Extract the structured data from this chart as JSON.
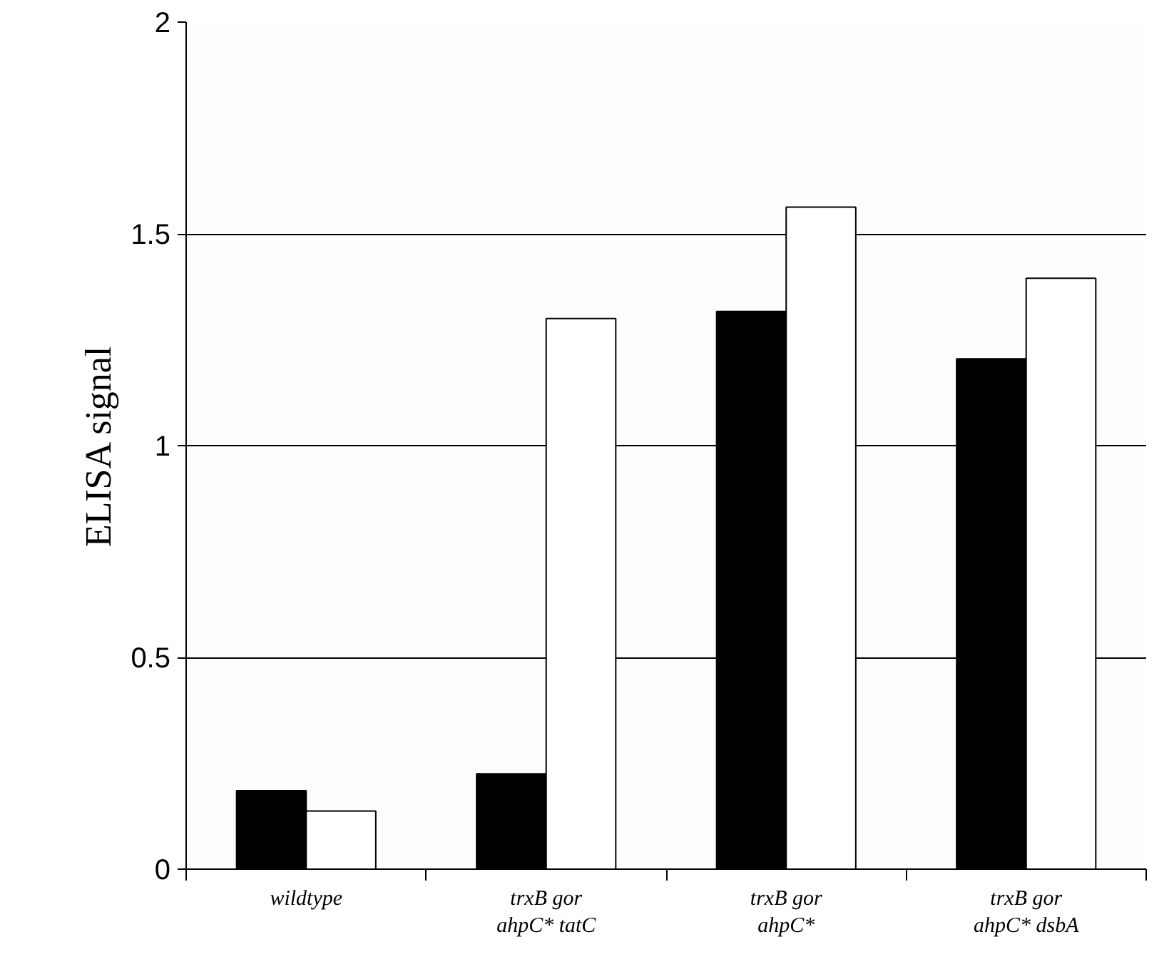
{
  "chart_data": {
    "type": "bar",
    "ylabel": "ELISA signal",
    "categories": [
      "wildtype",
      "trxB gor\nahpC* tatC",
      "trxB gor\nahpC*",
      "trxB gor\nahpC* dsbA"
    ],
    "series": [
      {
        "color": "#000000",
        "values": [
          0.185,
          0.225,
          1.317,
          1.205
        ]
      },
      {
        "color": "#ffffff",
        "values": [
          0.137,
          1.3,
          1.563,
          1.395
        ]
      }
    ],
    "ylim": [
      0,
      2
    ],
    "yticks": [
      0,
      0.5,
      1,
      1.5,
      2
    ],
    "grid": "y"
  }
}
